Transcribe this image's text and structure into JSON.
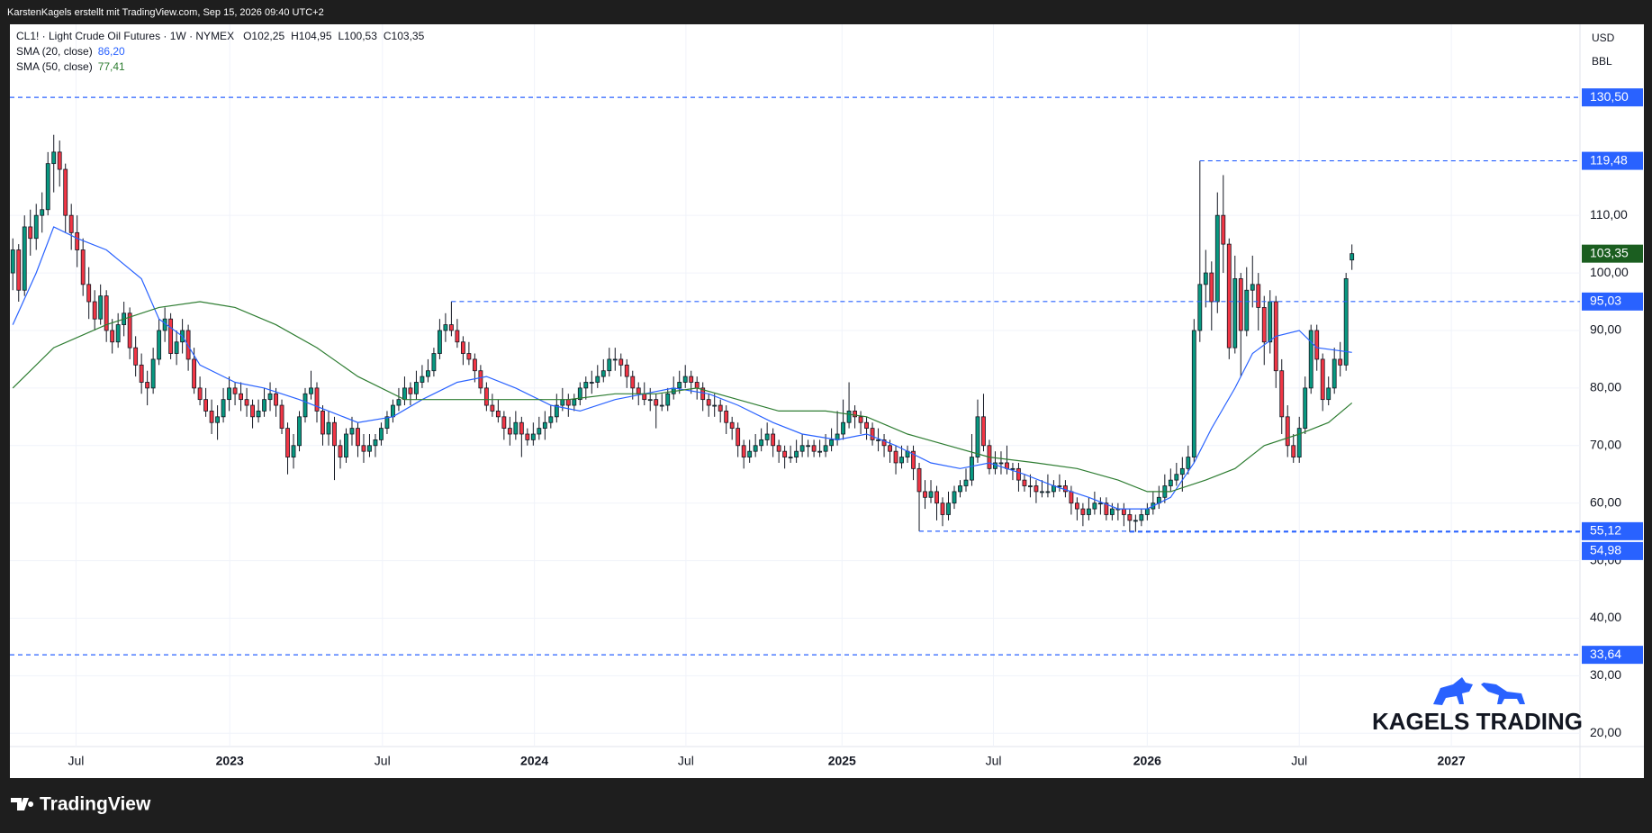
{
  "header": {
    "credit": "KarstenKagels erstellt mit TradingView.com, Sep 15, 2026 09:40 UTC+2"
  },
  "chart_data": {
    "type": "candlestick",
    "symbol": "CL1! · Light Crude Oil Futures · 1W · NYMEX",
    "last_labels": [
      "O102,25",
      "H104,95",
      "L100,53",
      "C103,35"
    ],
    "last_label": "103,35",
    "currency": "USD",
    "unit": "BBL",
    "colors": {
      "up": "#089981",
      "down": "#f23645",
      "level": "#2962ff",
      "last": "#1b5e20"
    },
    "candles": [
      [
        100,
        106,
        97,
        104
      ],
      [
        104,
        105,
        95,
        97
      ],
      [
        97,
        110,
        96,
        108
      ],
      [
        108,
        111,
        103,
        106
      ],
      [
        106,
        112,
        104,
        110
      ],
      [
        110,
        114,
        107,
        111
      ],
      [
        111,
        121,
        110,
        119
      ],
      [
        119,
        124,
        114,
        121
      ],
      [
        121,
        123,
        115,
        118
      ],
      [
        118,
        119,
        107,
        110
      ],
      [
        110,
        112,
        104,
        107
      ],
      [
        107,
        110,
        101,
        104
      ],
      [
        104,
        106,
        96,
        98
      ],
      [
        98,
        101,
        92,
        95
      ],
      [
        95,
        97,
        90,
        92
      ],
      [
        92,
        98,
        91,
        96
      ],
      [
        96,
        97,
        88,
        90
      ],
      [
        90,
        92,
        86,
        88
      ],
      [
        88,
        93,
        87,
        91
      ],
      [
        91,
        95,
        89,
        93
      ],
      [
        93,
        94,
        85,
        87
      ],
      [
        87,
        89,
        82,
        84
      ],
      [
        84,
        86,
        79,
        81
      ],
      [
        81,
        83,
        77,
        80
      ],
      [
        80,
        87,
        79,
        85
      ],
      [
        85,
        92,
        84,
        90
      ],
      [
        90,
        94,
        88,
        92
      ],
      [
        92,
        93,
        85,
        86
      ],
      [
        86,
        90,
        84,
        88
      ],
      [
        88,
        92,
        86,
        90
      ],
      [
        90,
        91,
        83,
        85
      ],
      [
        85,
        87,
        79,
        80
      ],
      [
        80,
        82,
        77,
        78
      ],
      [
        78,
        80,
        75,
        76
      ],
      [
        76,
        78,
        72,
        74
      ],
      [
        74,
        77,
        71,
        75
      ],
      [
        75,
        80,
        74,
        78
      ],
      [
        78,
        82,
        76,
        80
      ],
      [
        80,
        81,
        77,
        79
      ],
      [
        79,
        81,
        76,
        78
      ],
      [
        78,
        80,
        75,
        77
      ],
      [
        77,
        78,
        73,
        75
      ],
      [
        75,
        78,
        74,
        76
      ],
      [
        76,
        80,
        75,
        78
      ],
      [
        78,
        81,
        76,
        79
      ],
      [
        79,
        80,
        75,
        77
      ],
      [
        77,
        78,
        72,
        73
      ],
      [
        73,
        74,
        65,
        68
      ],
      [
        68,
        72,
        66,
        70
      ],
      [
        70,
        76,
        69,
        75
      ],
      [
        75,
        80,
        74,
        79
      ],
      [
        79,
        83,
        78,
        80
      ],
      [
        80,
        81,
        74,
        76
      ],
      [
        76,
        77,
        70,
        72
      ],
      [
        72,
        76,
        70,
        74
      ],
      [
        74,
        75,
        64,
        70
      ],
      [
        70,
        71,
        66,
        68
      ],
      [
        68,
        73,
        67,
        72
      ],
      [
        72,
        75,
        70,
        73
      ],
      [
        73,
        74,
        68,
        70
      ],
      [
        70,
        72,
        67,
        69
      ],
      [
        69,
        72,
        68,
        70
      ],
      [
        70,
        72,
        68,
        71
      ],
      [
        71,
        74,
        70,
        73
      ],
      [
        73,
        76,
        72,
        75
      ],
      [
        75,
        78,
        74,
        77
      ],
      [
        77,
        80,
        76,
        78
      ],
      [
        78,
        82,
        77,
        80
      ],
      [
        80,
        81,
        77,
        79
      ],
      [
        79,
        83,
        78,
        81
      ],
      [
        81,
        84,
        80,
        82
      ],
      [
        82,
        85,
        81,
        83
      ],
      [
        83,
        87,
        82,
        86
      ],
      [
        86,
        92,
        85,
        90
      ],
      [
        90,
        93,
        88,
        91
      ],
      [
        91,
        95.03,
        89,
        90
      ],
      [
        90,
        92,
        87,
        88
      ],
      [
        88,
        89,
        84,
        86
      ],
      [
        86,
        88,
        84,
        85
      ],
      [
        85,
        86,
        81,
        83
      ],
      [
        83,
        84,
        79,
        80
      ],
      [
        80,
        81,
        76,
        77
      ],
      [
        77,
        79,
        75,
        76
      ],
      [
        76,
        78,
        74,
        75
      ],
      [
        75,
        76,
        71,
        73
      ],
      [
        73,
        75,
        70,
        72
      ],
      [
        72,
        76,
        71,
        74
      ],
      [
        74,
        75,
        68,
        72
      ],
      [
        72,
        73,
        70,
        71
      ],
      [
        71,
        74,
        70,
        72
      ],
      [
        72,
        75,
        71,
        73
      ],
      [
        73,
        76,
        71,
        74
      ],
      [
        74,
        77,
        73,
        75
      ],
      [
        75,
        79,
        74,
        77
      ],
      [
        77,
        80,
        76,
        78
      ],
      [
        78,
        79,
        75,
        77
      ],
      [
        77,
        79,
        76,
        78
      ],
      [
        78,
        81,
        77,
        80
      ],
      [
        80,
        82,
        78,
        81
      ],
      [
        81,
        83,
        79,
        81
      ],
      [
        81,
        84,
        80,
        82
      ],
      [
        82,
        85,
        81,
        83
      ],
      [
        83,
        87,
        82,
        85
      ],
      [
        85,
        87,
        83,
        85
      ],
      [
        85,
        86,
        82,
        84
      ],
      [
        84,
        85,
        80,
        82
      ],
      [
        82,
        83,
        78,
        80
      ],
      [
        80,
        81,
        77,
        79
      ],
      [
        79,
        81,
        77,
        78
      ],
      [
        78,
        80,
        76,
        78
      ],
      [
        78,
        79,
        73,
        77
      ],
      [
        77,
        79,
        76,
        77
      ],
      [
        77,
        80,
        76,
        79
      ],
      [
        79,
        82,
        78,
        80
      ],
      [
        80,
        83,
        79,
        81
      ],
      [
        81,
        84,
        80,
        82
      ],
      [
        82,
        83,
        79,
        81
      ],
      [
        81,
        82,
        78,
        80
      ],
      [
        80,
        81,
        76,
        78
      ],
      [
        78,
        79,
        75,
        77
      ],
      [
        77,
        79,
        75,
        77
      ],
      [
        77,
        78,
        74,
        76
      ],
      [
        76,
        77,
        72,
        74
      ],
      [
        74,
        75,
        71,
        73
      ],
      [
        73,
        74,
        68,
        70
      ],
      [
        70,
        71,
        66,
        68
      ],
      [
        68,
        71,
        67,
        69
      ],
      [
        69,
        72,
        68,
        70
      ],
      [
        70,
        73,
        69,
        71
      ],
      [
        71,
        74,
        70,
        72
      ],
      [
        72,
        73,
        68,
        70
      ],
      [
        70,
        71,
        67,
        69
      ],
      [
        69,
        70,
        66,
        68
      ],
      [
        68,
        70,
        67,
        68
      ],
      [
        68,
        71,
        67,
        69
      ],
      [
        69,
        72,
        68,
        70
      ],
      [
        70,
        71,
        68,
        70
      ],
      [
        70,
        71,
        68,
        69
      ],
      [
        69,
        71,
        68,
        69
      ],
      [
        69,
        72,
        68,
        70
      ],
      [
        70,
        73,
        69,
        71
      ],
      [
        71,
        76,
        70,
        72
      ],
      [
        72,
        78,
        71,
        74
      ],
      [
        74,
        81,
        73,
        76
      ],
      [
        76,
        77,
        73,
        75
      ],
      [
        75,
        76,
        72,
        74
      ],
      [
        74,
        75,
        71,
        73
      ],
      [
        73,
        74,
        70,
        71
      ],
      [
        71,
        73,
        69,
        71
      ],
      [
        71,
        72,
        68,
        70
      ],
      [
        70,
        71,
        67,
        69
      ],
      [
        69,
        70,
        65,
        67
      ],
      [
        67,
        70,
        66,
        68
      ],
      [
        68,
        70,
        67,
        69
      ],
      [
        69,
        70,
        64,
        66
      ],
      [
        66,
        67,
        55.12,
        62
      ],
      [
        62,
        64,
        59,
        61
      ],
      [
        61,
        64,
        60,
        62
      ],
      [
        62,
        63,
        57,
        60
      ],
      [
        60,
        61,
        56,
        58
      ],
      [
        58,
        62,
        57,
        60
      ],
      [
        60,
        63,
        59,
        62
      ],
      [
        62,
        64,
        61,
        63
      ],
      [
        63,
        66,
        62,
        64
      ],
      [
        64,
        72,
        63,
        68
      ],
      [
        68,
        78,
        67,
        75
      ],
      [
        75,
        79,
        69,
        70
      ],
      [
        70,
        71,
        65,
        66
      ],
      [
        66,
        69,
        65,
        67
      ],
      [
        67,
        69,
        65,
        67
      ],
      [
        67,
        70,
        65,
        66
      ],
      [
        66,
        67,
        64,
        66
      ],
      [
        66,
        67,
        62,
        64
      ],
      [
        64,
        65,
        62,
        63
      ],
      [
        63,
        65,
        61,
        63
      ],
      [
        63,
        64,
        60,
        62
      ],
      [
        62,
        64,
        61,
        62
      ],
      [
        62,
        65,
        61,
        62
      ],
      [
        62,
        64,
        61,
        63
      ],
      [
        63,
        65,
        62,
        63
      ],
      [
        63,
        64,
        61,
        62
      ],
      [
        62,
        63,
        58,
        60
      ],
      [
        60,
        61,
        57,
        59
      ],
      [
        59,
        60,
        56,
        58
      ],
      [
        58,
        61,
        57,
        59
      ],
      [
        59,
        62,
        58,
        60
      ],
      [
        60,
        61,
        58,
        60
      ],
      [
        60,
        61,
        57,
        58
      ],
      [
        58,
        60,
        57,
        59
      ],
      [
        59,
        60,
        57,
        59
      ],
      [
        59,
        60,
        56,
        58
      ],
      [
        58,
        59,
        54.98,
        57
      ],
      [
        57,
        58,
        55,
        57
      ],
      [
        57,
        59,
        56,
        58
      ],
      [
        58,
        60,
        57,
        59
      ],
      [
        59,
        62,
        58,
        60
      ],
      [
        60,
        63,
        59,
        61
      ],
      [
        61,
        65,
        60,
        63
      ],
      [
        63,
        66,
        62,
        64
      ],
      [
        64,
        67,
        63,
        65
      ],
      [
        65,
        68,
        62,
        66
      ],
      [
        66,
        70,
        65,
        68
      ],
      [
        68,
        92,
        67,
        90
      ],
      [
        90,
        119.48,
        88,
        98
      ],
      [
        98,
        104,
        94,
        100
      ],
      [
        100,
        102,
        90,
        95
      ],
      [
        95,
        114,
        93,
        110
      ],
      [
        110,
        117,
        100,
        105
      ],
      [
        105,
        106,
        85,
        87
      ],
      [
        87,
        103,
        86,
        99
      ],
      [
        99,
        100,
        82,
        90
      ],
      [
        90,
        101,
        89,
        97
      ],
      [
        97,
        103,
        94,
        98
      ],
      [
        98,
        100,
        90,
        94
      ],
      [
        94,
        96,
        84,
        88
      ],
      [
        88,
        97,
        86,
        95
      ],
      [
        95,
        96,
        80,
        83
      ],
      [
        83,
        85,
        72,
        75
      ],
      [
        75,
        77,
        68,
        70
      ],
      [
        70,
        72,
        67,
        68
      ],
      [
        68,
        75,
        67,
        73
      ],
      [
        73,
        82,
        72,
        80
      ],
      [
        80,
        91,
        79,
        90
      ],
      [
        90,
        91,
        83,
        85
      ],
      [
        85,
        86,
        76,
        78
      ],
      [
        78,
        82,
        77,
        80
      ],
      [
        80,
        87,
        79,
        85
      ],
      [
        85,
        88,
        82,
        84
      ],
      [
        84,
        100,
        83,
        99
      ],
      [
        102.25,
        104.95,
        100.53,
        103.35
      ]
    ],
    "series": [
      {
        "name": "SMA (20, close)",
        "color": "#2962ff",
        "value_label": "86,20",
        "x": [
          0,
          4,
          7,
          11,
          16,
          22,
          25,
          29,
          32,
          38,
          43,
          49,
          54,
          59,
          65,
          70,
          76,
          81,
          86,
          92,
          97,
          103,
          108,
          113,
          119,
          124,
          130,
          135,
          141,
          146,
          151,
          157,
          162,
          167,
          173,
          178,
          184,
          189,
          194,
          198,
          202,
          205,
          209,
          212,
          216,
          220,
          223,
          229
        ],
        "values": [
          91,
          100,
          108,
          106,
          104,
          99,
          92,
          89,
          84,
          81,
          80,
          78,
          76,
          74,
          75,
          78,
          81,
          82,
          80,
          77,
          76,
          78,
          79,
          80,
          79,
          77,
          74,
          72,
          71,
          72,
          70,
          67,
          66,
          67,
          65,
          63,
          61,
          59,
          59,
          61,
          67,
          73,
          80,
          86,
          89,
          90,
          87,
          86.2
        ]
      },
      {
        "name": "SMA (50, close)",
        "color": "#2e7d32",
        "value_label": "77,41",
        "x": [
          0,
          7,
          16,
          25,
          32,
          38,
          45,
          52,
          59,
          67,
          74,
          81,
          88,
          95,
          103,
          110,
          117,
          124,
          131,
          139,
          146,
          153,
          160,
          167,
          175,
          182,
          189,
          194,
          198,
          204,
          209,
          214,
          220,
          225,
          229
        ],
        "values": [
          80,
          87,
          91,
          94,
          95,
          94,
          91,
          87,
          82,
          78,
          78,
          78,
          78,
          78,
          79,
          79,
          80,
          78,
          76,
          76,
          75,
          72,
          70,
          68,
          67,
          66,
          64,
          62,
          62,
          64,
          66,
          70,
          72,
          74,
          77.41
        ]
      }
    ],
    "levels": [
      {
        "value": 130.5,
        "label": "130,50"
      },
      {
        "value": 119.48,
        "label": "119,48"
      },
      {
        "value": 95.03,
        "label": "95,03"
      },
      {
        "value": 55.12,
        "label": "55,12"
      },
      {
        "value": 54.98,
        "label": "54,98"
      },
      {
        "value": 33.64,
        "label": "33,64"
      }
    ],
    "ylim": [
      17.7,
      143.2
    ],
    "yticks": [
      {
        "value": 20,
        "label": "20,00"
      },
      {
        "value": 30,
        "label": "30,00"
      },
      {
        "value": 40,
        "label": "40,00"
      },
      {
        "value": 50,
        "label": "50,00"
      },
      {
        "value": 60,
        "label": "60,00"
      },
      {
        "value": 70,
        "label": "70,00"
      },
      {
        "value": 80,
        "label": "80,00"
      },
      {
        "value": 90,
        "label": "90,00"
      },
      {
        "value": 100,
        "label": "100,00"
      },
      {
        "value": 110,
        "label": "110,00"
      }
    ],
    "xlim": [
      -0.5,
      268
    ],
    "xticks": [
      {
        "value": 10.8,
        "label": "Jul"
      },
      {
        "value": 37.1,
        "label": "2023"
      },
      {
        "value": 63.2,
        "label": "Jul"
      },
      {
        "value": 89.2,
        "label": "2024"
      },
      {
        "value": 115.1,
        "label": "Jul"
      },
      {
        "value": 141.8,
        "label": "2025"
      },
      {
        "value": 167.7,
        "label": "Jul"
      },
      {
        "value": 194,
        "label": "2026"
      },
      {
        "value": 220,
        "label": "Jul"
      },
      {
        "value": 246,
        "label": "2027"
      }
    ],
    "grid": true
  },
  "watermark": "KAGELS TRADING",
  "footer": "TradingView"
}
